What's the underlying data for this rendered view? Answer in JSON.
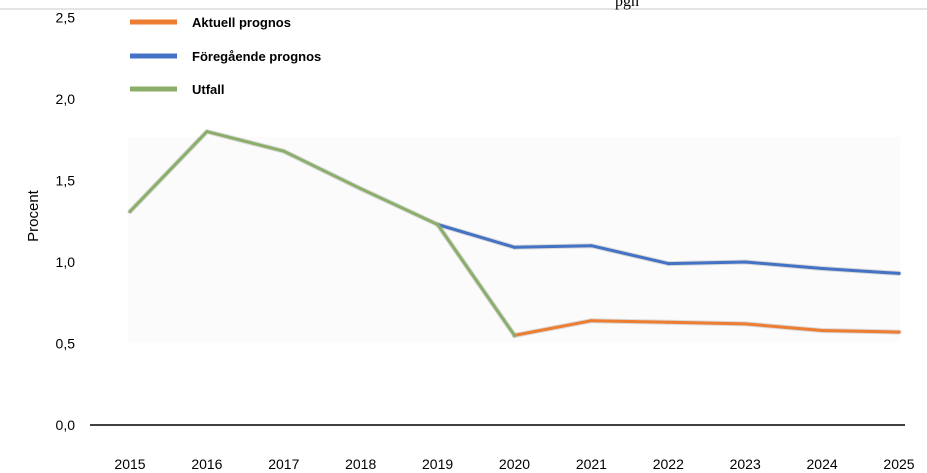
{
  "chart_data": {
    "type": "line",
    "title": "pgn",
    "ylabel": "Procent",
    "xlabel": "",
    "ylim": [
      0.0,
      2.5
    ],
    "yticks": [
      "0,0",
      "0,5",
      "1,0",
      "1,5",
      "2,0",
      "2,5"
    ],
    "ytick_values": [
      0.0,
      0.5,
      1.0,
      1.5,
      2.0,
      2.5
    ],
    "categories": [
      "2015",
      "2016",
      "2017",
      "2018",
      "2019",
      "2020",
      "2021",
      "2022",
      "2023",
      "2024",
      "2025"
    ],
    "grid": false,
    "legend_position": "top-left",
    "series": [
      {
        "name": "Aktuell prognos",
        "color": "#ED7D31",
        "values": [
          null,
          null,
          null,
          null,
          null,
          0.55,
          0.64,
          0.63,
          0.62,
          0.58,
          0.57
        ]
      },
      {
        "name": "Föregående prognos",
        "color": "#4472C4",
        "values": [
          null,
          null,
          null,
          null,
          1.23,
          1.09,
          1.1,
          0.99,
          1.0,
          0.96,
          0.93
        ]
      },
      {
        "name": "Utfall",
        "color": "#8BAF6A",
        "values": [
          1.31,
          1.8,
          1.68,
          1.45,
          1.23,
          0.55,
          null,
          null,
          null,
          null,
          null
        ]
      }
    ]
  }
}
